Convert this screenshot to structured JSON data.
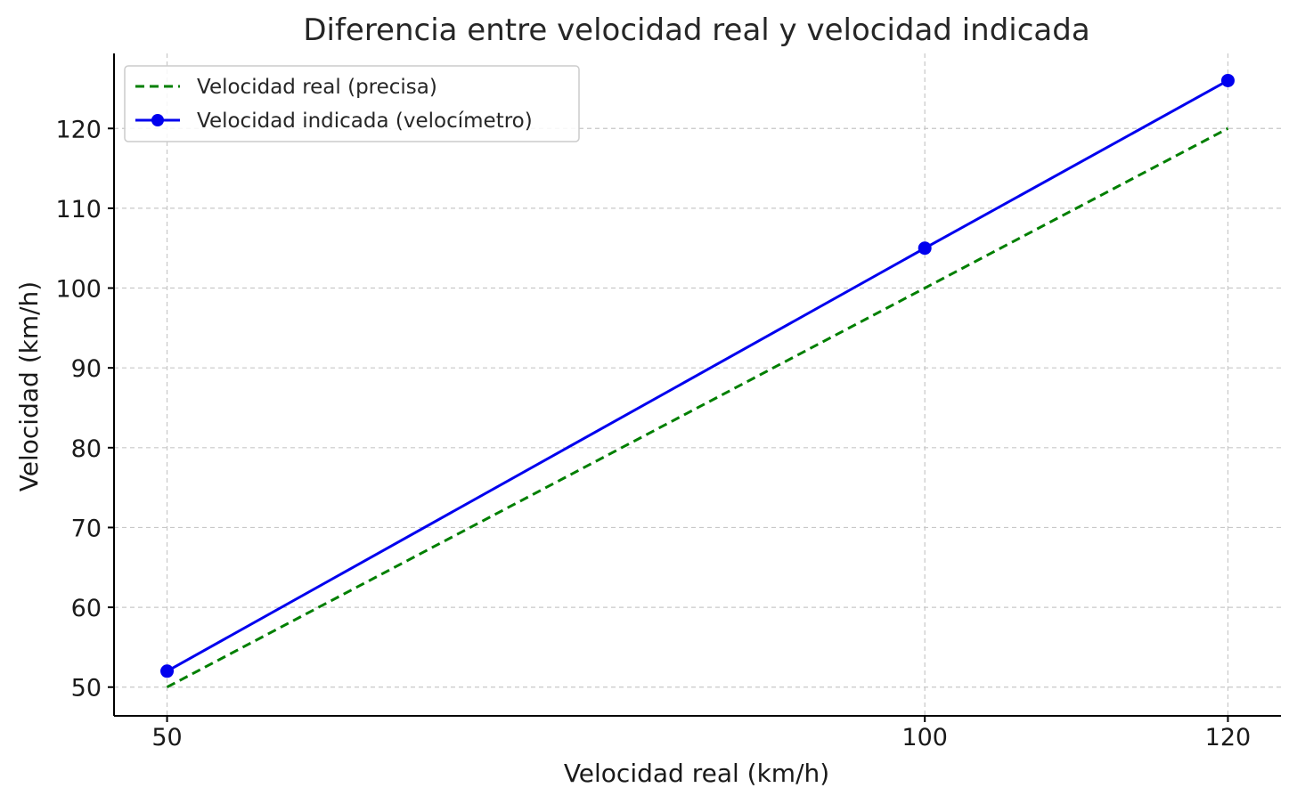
{
  "chart_data": {
    "type": "line",
    "title": "Diferencia entre velocidad real y velocidad indicada",
    "xlabel": "Velocidad real (km/h)",
    "ylabel": "Velocidad (km/h)",
    "x": [
      50,
      100,
      120
    ],
    "xticks": [
      50,
      100,
      120
    ],
    "yticks": [
      50,
      60,
      70,
      80,
      90,
      100,
      110,
      120
    ],
    "xlim": [
      46.5,
      123.5
    ],
    "ylim": [
      46.4,
      129.4
    ],
    "grid": true,
    "legend_position": "top-left",
    "series": [
      {
        "name": "Velocidad real (precisa)",
        "values": [
          50,
          100,
          120
        ],
        "color": "#007f00",
        "style": "dashed",
        "markers": false
      },
      {
        "name": "Velocidad indicada (velocímetro)",
        "values": [
          52,
          105,
          126
        ],
        "color": "#0000ee",
        "style": "solid",
        "markers": true
      }
    ]
  }
}
